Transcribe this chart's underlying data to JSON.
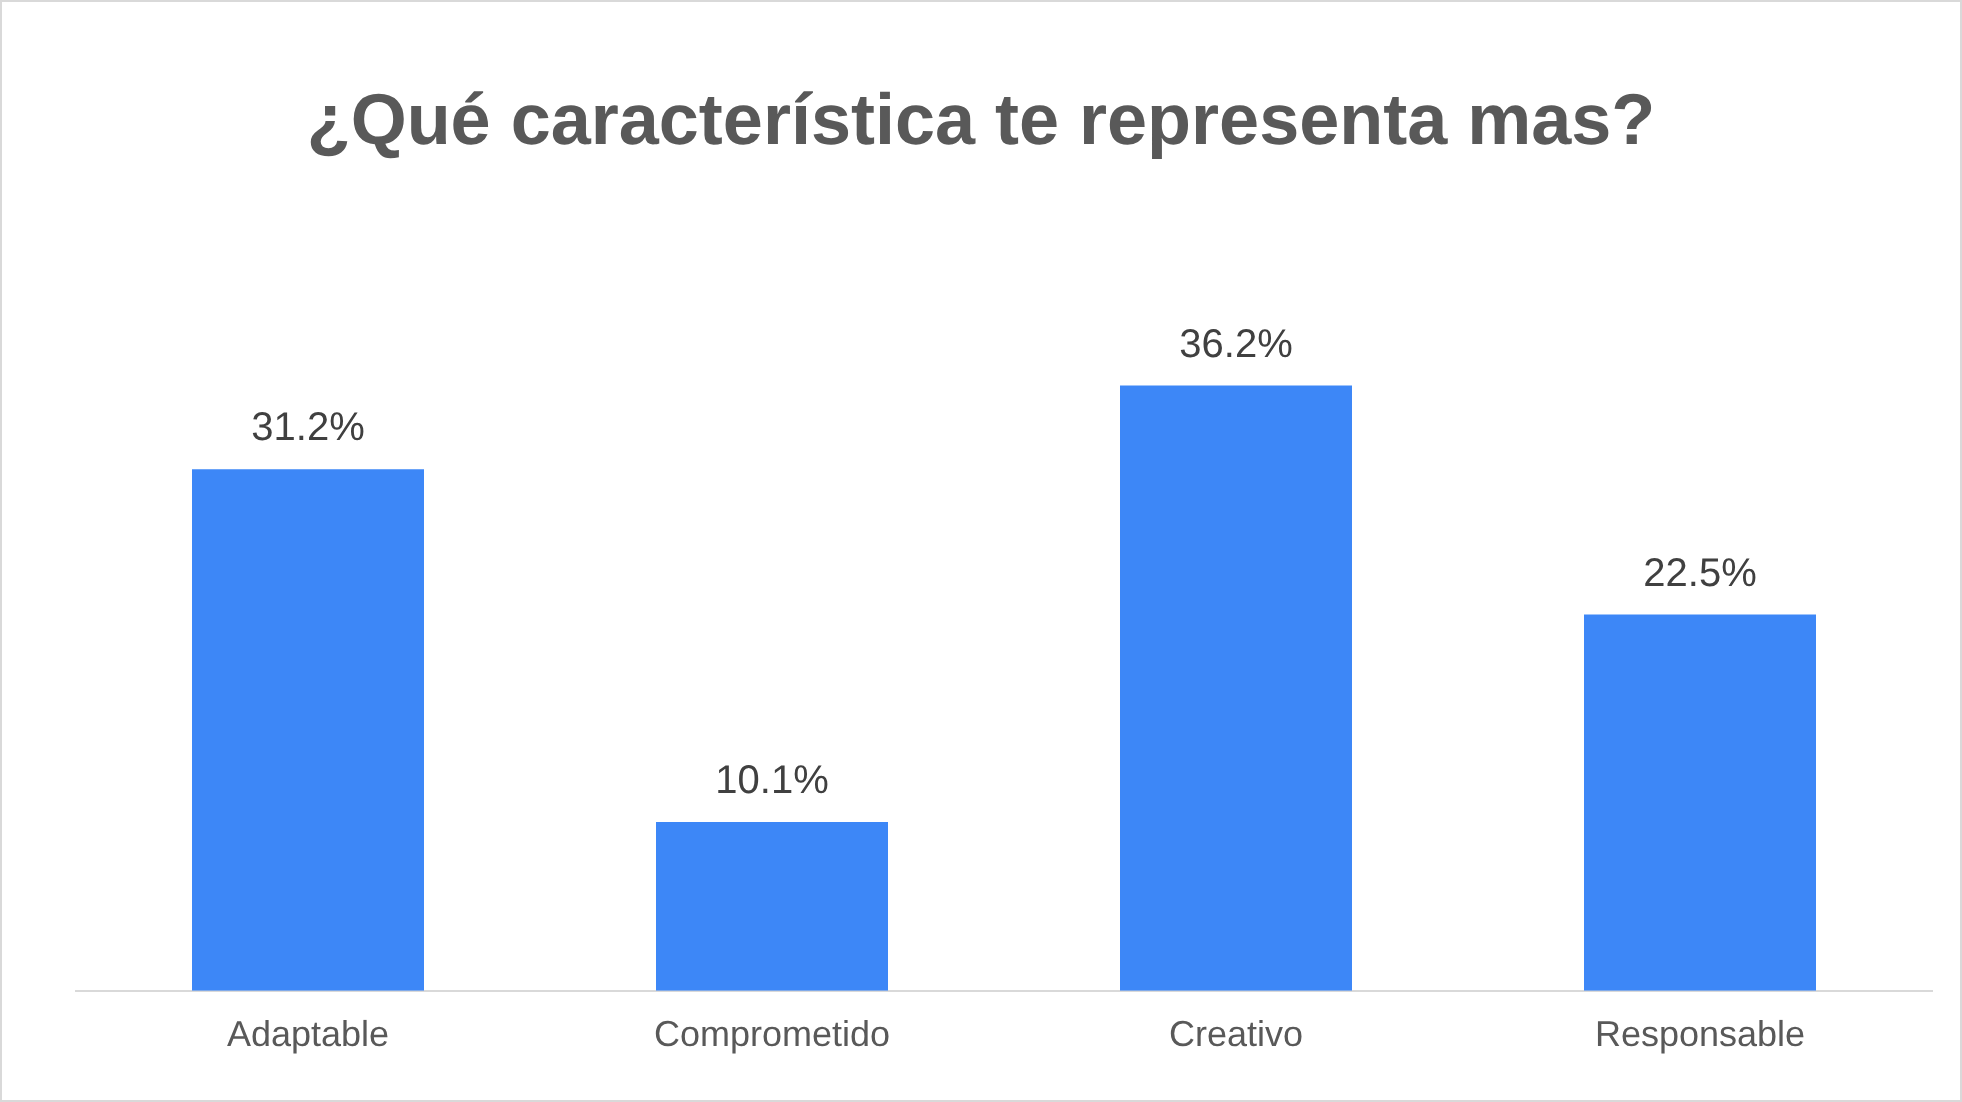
{
  "chart_data": {
    "type": "bar",
    "title": "¿Qué característica te representa mas?",
    "categories": [
      "Adaptable",
      "Comprometido",
      "Creativo",
      "Responsable"
    ],
    "values": [
      31.2,
      10.1,
      36.2,
      22.5
    ],
    "value_labels": [
      "31.2%",
      "10.1%",
      "36.2%",
      "22.5%"
    ],
    "color": "#3d87f7",
    "grid": false,
    "legend": false
  }
}
